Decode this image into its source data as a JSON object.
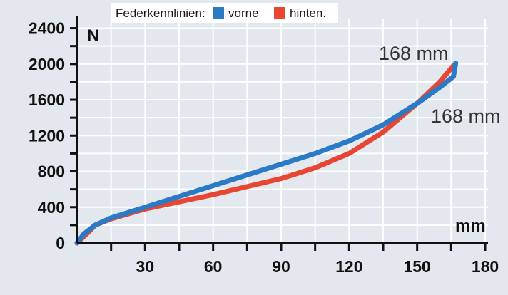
{
  "chart_data": {
    "type": "line",
    "legend_title": "Federkennlinien:",
    "legend_position": "top-center",
    "xlabel": "mm",
    "ylabel": "N",
    "xlim": [
      0,
      180
    ],
    "ylim": [
      0,
      2500
    ],
    "x_ticks": [
      30,
      60,
      90,
      120,
      150,
      180
    ],
    "y_ticks": [
      0,
      400,
      800,
      1200,
      1600,
      2000,
      2400
    ],
    "grid": true,
    "series": [
      {
        "name": "vorne",
        "color": "#2b7ac6",
        "x": [
          0,
          3,
          8,
          15,
          30,
          45,
          60,
          75,
          90,
          105,
          120,
          135,
          150,
          160,
          166,
          167,
          166
        ],
        "y": [
          0,
          100,
          200,
          280,
          400,
          520,
          640,
          760,
          880,
          1000,
          1140,
          1320,
          1560,
          1740,
          1860,
          2010,
          1860
        ]
      },
      {
        "name": "hinten.",
        "color": "#e84632",
        "x": [
          0,
          2,
          5,
          8,
          15,
          30,
          45,
          60,
          75,
          90,
          105,
          120,
          135,
          150,
          160,
          166
        ],
        "y": [
          0,
          50,
          120,
          200,
          270,
          380,
          460,
          540,
          630,
          720,
          840,
          1000,
          1240,
          1560,
          1800,
          1980
        ]
      }
    ],
    "annotations": [
      {
        "text": "168 mm",
        "series": "hinten."
      },
      {
        "text": "168 mm",
        "series": "vorne"
      }
    ]
  }
}
